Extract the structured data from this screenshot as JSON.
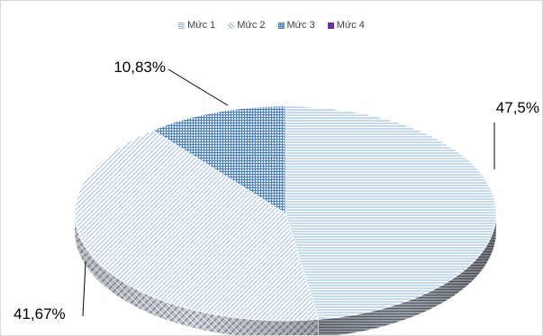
{
  "chart_data": {
    "type": "pie",
    "title": "",
    "categories": [
      "Mức 1",
      "Mức 2",
      "Mức 3",
      "Mức 4"
    ],
    "values": [
      47.5,
      41.67,
      10.83,
      0
    ],
    "data_labels": [
      "47,5%",
      "41,67%",
      "10,83%",
      ""
    ],
    "legend_position": "top",
    "style": "3d"
  },
  "colors": {
    "series1": "#8eb4e3",
    "series2": "#b9cde5",
    "series3": "#4f81bd",
    "series4": "#7030a0"
  }
}
